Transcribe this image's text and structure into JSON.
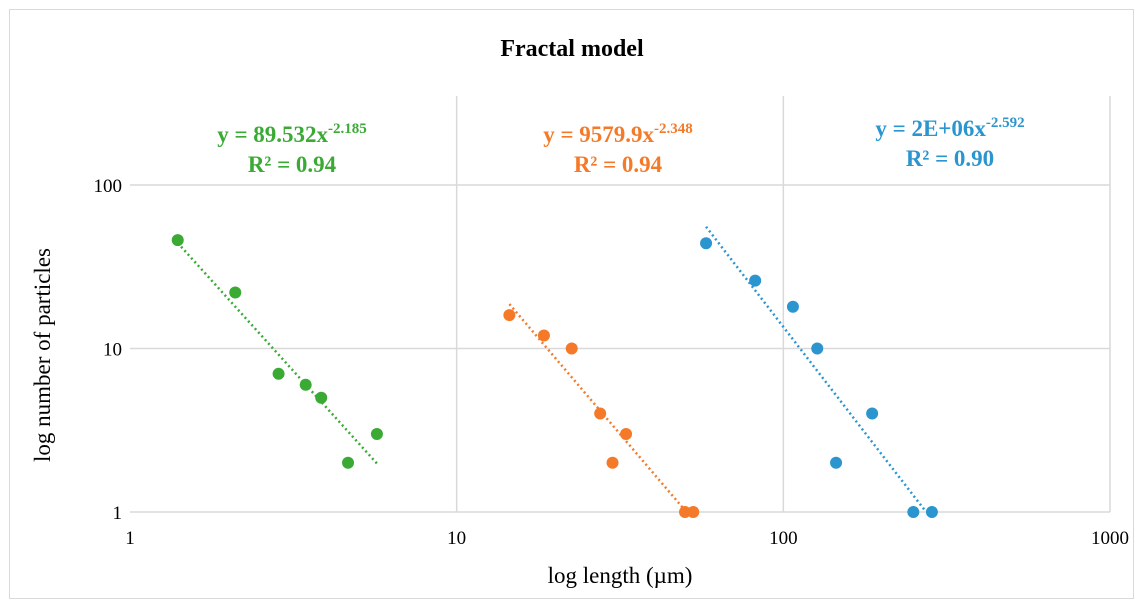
{
  "chart_data": {
    "type": "scatter",
    "title": "Fractal model",
    "xlabel": "log length (µm)",
    "ylabel": "log number of particles",
    "x_scale": "log",
    "y_scale": "log",
    "xlim": [
      1,
      1000
    ],
    "ylim": [
      1,
      350
    ],
    "x_ticks": [
      "1",
      "10",
      "100",
      "1000"
    ],
    "y_ticks": [
      "1",
      "10",
      "100"
    ],
    "grid": true,
    "series": [
      {
        "color": "#3aaa35",
        "points": [
          [
            1.4,
            46
          ],
          [
            2.1,
            22
          ],
          [
            2.85,
            7
          ],
          [
            3.45,
            6
          ],
          [
            3.85,
            5
          ],
          [
            4.65,
            2
          ],
          [
            5.7,
            3
          ]
        ],
        "trendline": {
          "x_start": 1.4,
          "x_end": 5.7
        },
        "equation_coef": "y = 89.532x",
        "equation_exp": "-2.185",
        "r2": "R² = 0.94"
      },
      {
        "color": "#f47a2a",
        "points": [
          [
            14.5,
            16
          ],
          [
            18.5,
            12
          ],
          [
            22.5,
            10
          ],
          [
            27.5,
            4
          ],
          [
            33,
            3
          ],
          [
            30,
            2
          ],
          [
            50,
            1
          ],
          [
            53,
            1
          ]
        ],
        "trendline": {
          "x_start": 14.5,
          "x_end": 50
        },
        "equation_coef": "y = 9579.9x",
        "equation_exp": "-2.348",
        "r2": "R² = 0.94"
      },
      {
        "color": "#2b95d0",
        "points": [
          [
            58,
            44
          ],
          [
            82,
            26
          ],
          [
            107,
            18
          ],
          [
            127,
            10
          ],
          [
            145,
            2
          ],
          [
            187,
            4
          ],
          [
            250,
            1
          ],
          [
            285,
            1
          ]
        ],
        "trendline": {
          "x_start": 58,
          "x_end": 270
        },
        "equation_coef": "y = 2E+06x",
        "equation_exp": "-2.592",
        "r2": "R² = 0.90"
      }
    ]
  }
}
